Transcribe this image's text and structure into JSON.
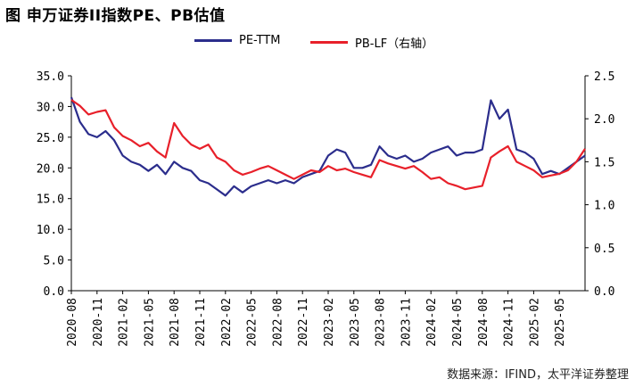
{
  "title": "图  申万证券II指数PE、PB估值",
  "source": "数据来源：IFIND，太平洋证券整理",
  "colors": {
    "pe": "#2b2d8c",
    "pb": "#e8202a"
  },
  "chart_data": {
    "type": "line",
    "title": "图  申万证券II指数PE、PB估值",
    "x": [
      "2020-08",
      "2020-09",
      "2020-10",
      "2020-11",
      "2020-12",
      "2021-01",
      "2021-02",
      "2021-03",
      "2021-04",
      "2021-05",
      "2021-06",
      "2021-07",
      "2021-08",
      "2021-09",
      "2021-10",
      "2021-11",
      "2021-12",
      "2022-01",
      "2022-02",
      "2022-03",
      "2022-04",
      "2022-05",
      "2022-06",
      "2022-07",
      "2022-08",
      "2022-09",
      "2022-10",
      "2022-11",
      "2022-12",
      "2023-01",
      "2023-02",
      "2023-03",
      "2023-04",
      "2023-05",
      "2023-06",
      "2023-07",
      "2023-08",
      "2023-09",
      "2023-10",
      "2023-11",
      "2023-12",
      "2024-01",
      "2024-02",
      "2024-03",
      "2024-04",
      "2024-05",
      "2024-06",
      "2024-07",
      "2024-08",
      "2024-09",
      "2024-10",
      "2024-11",
      "2024-12",
      "2025-01",
      "2025-02",
      "2025-03",
      "2025-04",
      "2025-05",
      "2025-06",
      "2025-07",
      "2025-08"
    ],
    "x_tick_labels": [
      "2020-08",
      "2020-11",
      "2021-02",
      "2021-05",
      "2021-08",
      "2021-11",
      "2022-02",
      "2022-05",
      "2022-08",
      "2022-11",
      "2023-02",
      "2023-05",
      "2023-08",
      "2023-11",
      "2024-02",
      "2024-05",
      "2024-08",
      "2024-11",
      "2025-02",
      "2025-05"
    ],
    "series": [
      {
        "name": "PE-TTM",
        "axis": "left",
        "values": [
          31.5,
          27.5,
          25.5,
          25.0,
          26.0,
          24.5,
          22.0,
          21.0,
          20.5,
          19.5,
          20.5,
          19.0,
          21.0,
          20.0,
          19.5,
          18.0,
          17.5,
          16.5,
          15.5,
          17.0,
          16.0,
          17.0,
          17.5,
          18.0,
          17.5,
          18.0,
          17.5,
          18.5,
          19.0,
          19.5,
          22.0,
          23.0,
          22.5,
          20.0,
          20.0,
          20.5,
          23.5,
          22.0,
          21.5,
          22.0,
          21.0,
          21.5,
          22.5,
          23.0,
          23.5,
          22.0,
          22.5,
          22.5,
          23.0,
          31.0,
          28.0,
          29.5,
          23.0,
          22.5,
          21.5,
          19.0,
          19.5,
          19.0,
          20.0,
          21.0,
          22.0
        ]
      },
      {
        "name": "PB-LF（右轴）",
        "axis": "right",
        "values": [
          2.22,
          2.15,
          2.05,
          2.08,
          2.1,
          1.9,
          1.8,
          1.75,
          1.68,
          1.72,
          1.62,
          1.55,
          1.95,
          1.8,
          1.7,
          1.65,
          1.7,
          1.55,
          1.5,
          1.4,
          1.35,
          1.38,
          1.42,
          1.45,
          1.4,
          1.35,
          1.3,
          1.35,
          1.4,
          1.38,
          1.45,
          1.4,
          1.42,
          1.38,
          1.35,
          1.32,
          1.52,
          1.48,
          1.45,
          1.42,
          1.45,
          1.38,
          1.3,
          1.32,
          1.25,
          1.22,
          1.18,
          1.2,
          1.22,
          1.55,
          1.62,
          1.68,
          1.5,
          1.45,
          1.4,
          1.32,
          1.34,
          1.36,
          1.4,
          1.5,
          1.65
        ]
      }
    ],
    "y_left": {
      "ylim": [
        0,
        35
      ],
      "ticks": [
        "0.0",
        "5.0",
        "10.0",
        "15.0",
        "20.0",
        "25.0",
        "30.0",
        "35.0"
      ]
    },
    "y_right": {
      "ylim": [
        0,
        2.5
      ],
      "ticks": [
        "0.0",
        "0.5",
        "1.0",
        "1.5",
        "2.0",
        "2.5"
      ]
    },
    "legend": "top",
    "grid": false
  }
}
